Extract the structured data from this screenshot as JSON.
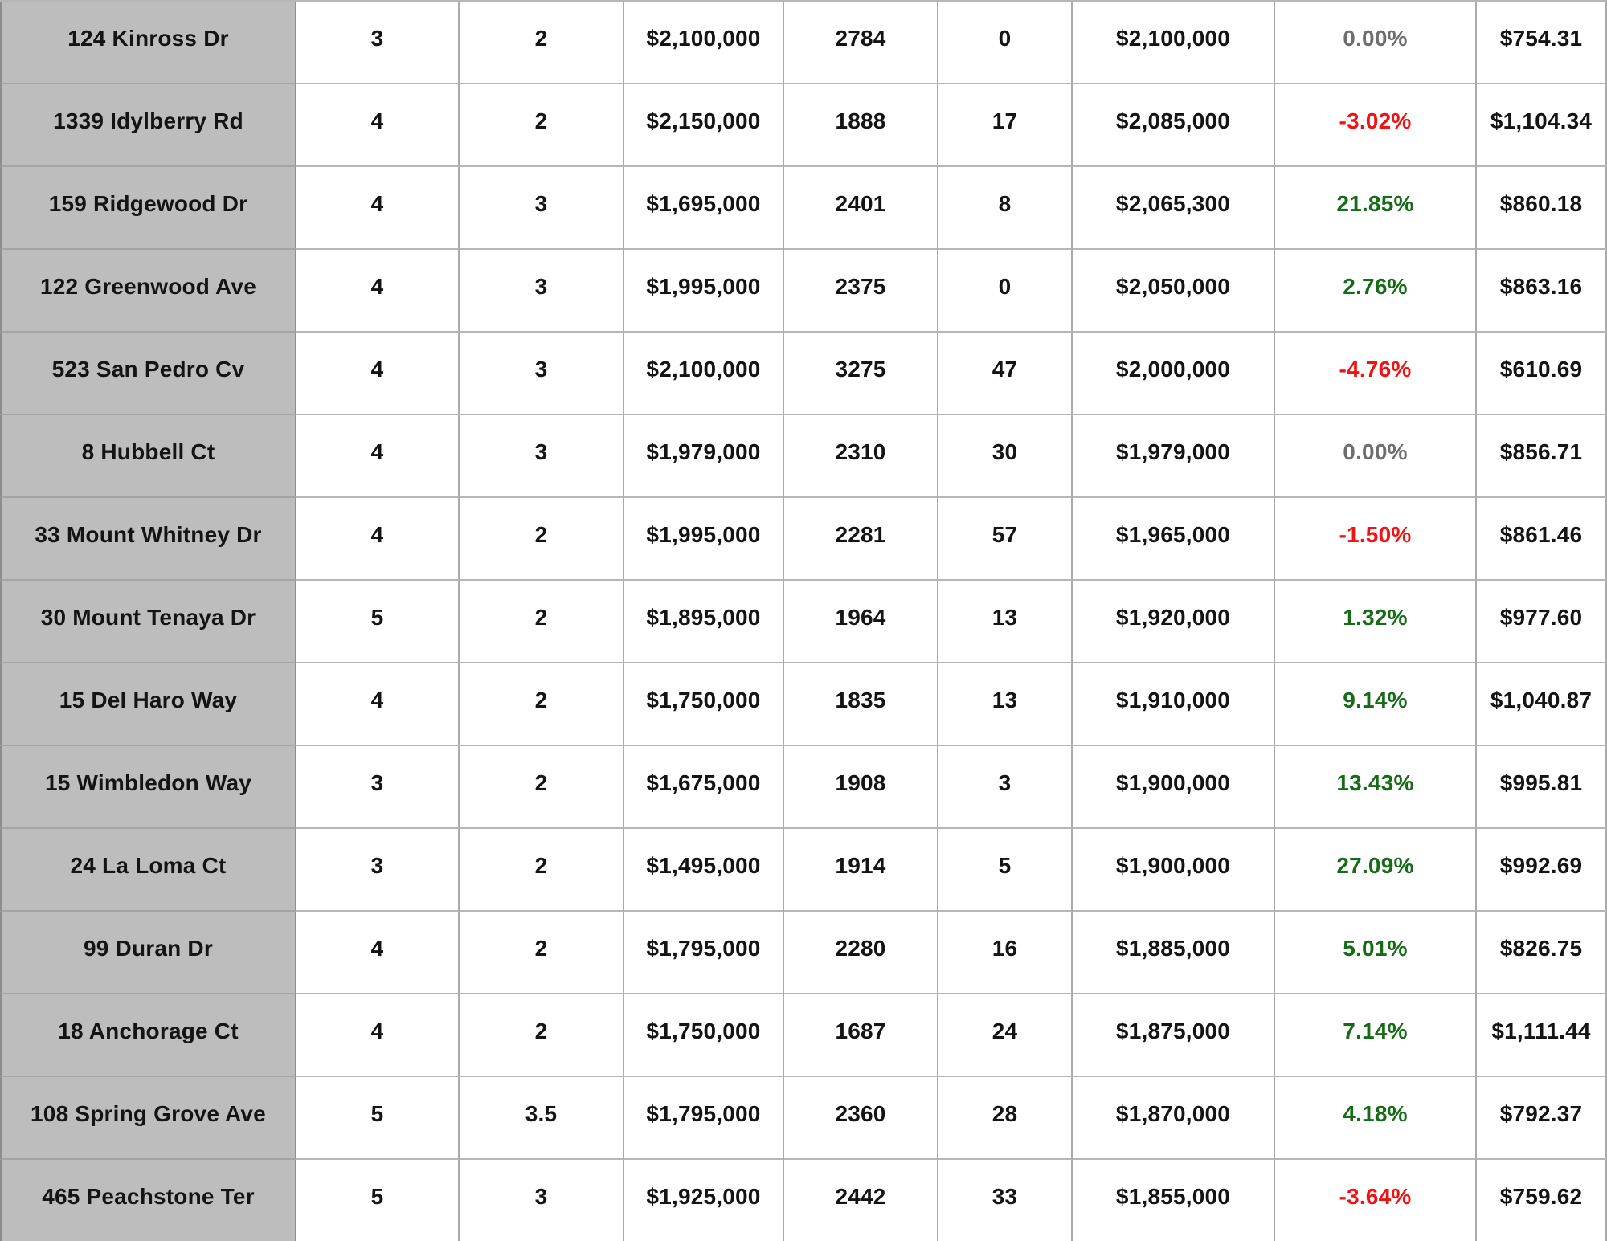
{
  "table": {
    "column_keys": [
      "address",
      "beds",
      "baths",
      "list_price",
      "sqft",
      "days_on_market",
      "sale_price",
      "pct_change",
      "price_per_sqft"
    ],
    "rows": [
      {
        "address": "124 Kinross Dr",
        "beds": "3",
        "baths": "2",
        "list_price": "$2,100,000",
        "sqft": "2784",
        "days_on_market": "0",
        "sale_price": "$2,100,000",
        "pct_change": "0.00%",
        "pct_sentiment": "neutral",
        "price_per_sqft": "$754.31"
      },
      {
        "address": "1339 Idylberry Rd",
        "beds": "4",
        "baths": "2",
        "list_price": "$2,150,000",
        "sqft": "1888",
        "days_on_market": "17",
        "sale_price": "$2,085,000",
        "pct_change": "-3.02%",
        "pct_sentiment": "negative",
        "price_per_sqft": "$1,104.34"
      },
      {
        "address": "159 Ridgewood Dr",
        "beds": "4",
        "baths": "3",
        "list_price": "$1,695,000",
        "sqft": "2401",
        "days_on_market": "8",
        "sale_price": "$2,065,300",
        "pct_change": "21.85%",
        "pct_sentiment": "positive",
        "price_per_sqft": "$860.18"
      },
      {
        "address": "122 Greenwood Ave",
        "beds": "4",
        "baths": "3",
        "list_price": "$1,995,000",
        "sqft": "2375",
        "days_on_market": "0",
        "sale_price": "$2,050,000",
        "pct_change": "2.76%",
        "pct_sentiment": "positive",
        "price_per_sqft": "$863.16"
      },
      {
        "address": "523 San Pedro Cv",
        "beds": "4",
        "baths": "3",
        "list_price": "$2,100,000",
        "sqft": "3275",
        "days_on_market": "47",
        "sale_price": "$2,000,000",
        "pct_change": "-4.76%",
        "pct_sentiment": "negative",
        "price_per_sqft": "$610.69"
      },
      {
        "address": "8 Hubbell Ct",
        "beds": "4",
        "baths": "3",
        "list_price": "$1,979,000",
        "sqft": "2310",
        "days_on_market": "30",
        "sale_price": "$1,979,000",
        "pct_change": "0.00%",
        "pct_sentiment": "neutral",
        "price_per_sqft": "$856.71"
      },
      {
        "address": "33 Mount Whitney Dr",
        "beds": "4",
        "baths": "2",
        "list_price": "$1,995,000",
        "sqft": "2281",
        "days_on_market": "57",
        "sale_price": "$1,965,000",
        "pct_change": "-1.50%",
        "pct_sentiment": "negative",
        "price_per_sqft": "$861.46"
      },
      {
        "address": "30 Mount Tenaya Dr",
        "beds": "5",
        "baths": "2",
        "list_price": "$1,895,000",
        "sqft": "1964",
        "days_on_market": "13",
        "sale_price": "$1,920,000",
        "pct_change": "1.32%",
        "pct_sentiment": "positive",
        "price_per_sqft": "$977.60"
      },
      {
        "address": "15 Del Haro Way",
        "beds": "4",
        "baths": "2",
        "list_price": "$1,750,000",
        "sqft": "1835",
        "days_on_market": "13",
        "sale_price": "$1,910,000",
        "pct_change": "9.14%",
        "pct_sentiment": "positive",
        "price_per_sqft": "$1,040.87"
      },
      {
        "address": "15 Wimbledon Way",
        "beds": "3",
        "baths": "2",
        "list_price": "$1,675,000",
        "sqft": "1908",
        "days_on_market": "3",
        "sale_price": "$1,900,000",
        "pct_change": "13.43%",
        "pct_sentiment": "positive",
        "price_per_sqft": "$995.81"
      },
      {
        "address": "24 La Loma Ct",
        "beds": "3",
        "baths": "2",
        "list_price": "$1,495,000",
        "sqft": "1914",
        "days_on_market": "5",
        "sale_price": "$1,900,000",
        "pct_change": "27.09%",
        "pct_sentiment": "positive",
        "price_per_sqft": "$992.69"
      },
      {
        "address": "99 Duran Dr",
        "beds": "4",
        "baths": "2",
        "list_price": "$1,795,000",
        "sqft": "2280",
        "days_on_market": "16",
        "sale_price": "$1,885,000",
        "pct_change": "5.01%",
        "pct_sentiment": "positive",
        "price_per_sqft": "$826.75"
      },
      {
        "address": "18 Anchorage Ct",
        "beds": "4",
        "baths": "2",
        "list_price": "$1,750,000",
        "sqft": "1687",
        "days_on_market": "24",
        "sale_price": "$1,875,000",
        "pct_change": "7.14%",
        "pct_sentiment": "positive",
        "price_per_sqft": "$1,111.44"
      },
      {
        "address": "108 Spring Grove Ave",
        "beds": "5",
        "baths": "3.5",
        "list_price": "$1,795,000",
        "sqft": "2360",
        "days_on_market": "28",
        "sale_price": "$1,870,000",
        "pct_change": "4.18%",
        "pct_sentiment": "positive",
        "price_per_sqft": "$792.37"
      },
      {
        "address": "465 Peachstone Ter",
        "beds": "5",
        "baths": "3",
        "list_price": "$1,925,000",
        "sqft": "2442",
        "days_on_market": "33",
        "sale_price": "$1,855,000",
        "pct_change": "-3.64%",
        "pct_sentiment": "negative",
        "price_per_sqft": "$759.62"
      }
    ]
  },
  "colors": {
    "positive": "#166b16",
    "negative": "#f31111",
    "neutral": "#6e6e6e",
    "text": "#141414",
    "address_cell_bg": "#bdbdbd",
    "grid_line": "#ababab"
  }
}
